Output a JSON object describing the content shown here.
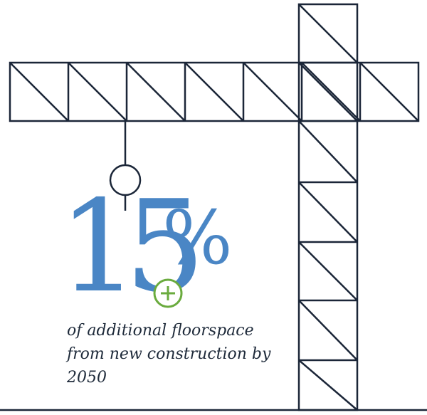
{
  "stat": {
    "value": "15",
    "unit": "%",
    "caption": "of additional floorspace from new construction by 2050"
  },
  "icons": {
    "badge": "plus-circle-icon",
    "hook": "crane-hook-icon"
  },
  "colors": {
    "accent": "#4a86c5",
    "badge": "#6aab3e",
    "line": "#1b2638",
    "text": "#1e2a3a"
  }
}
